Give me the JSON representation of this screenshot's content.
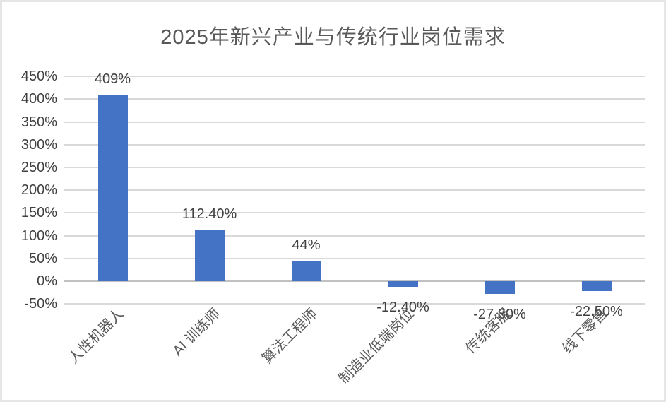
{
  "chart_data": {
    "type": "bar",
    "title": "2025年新兴产业与传统行业岗位需求",
    "categories": [
      "人性机器人",
      "AI 训练师",
      "算法工程师",
      "制造业低端岗位",
      "传统客服",
      "线下零售"
    ],
    "values": [
      409,
      112.4,
      44,
      -12.4,
      -27.8,
      -22.5
    ],
    "data_labels": [
      "409%",
      "112.40%",
      "44%",
      "-12.40%",
      "-27.80%",
      "-22.50%"
    ],
    "y_tick_labels": [
      "450%",
      "400%",
      "350%",
      "300%",
      "250%",
      "200%",
      "150%",
      "100%",
      "50%",
      "0%",
      "-50%"
    ],
    "y_tick_values": [
      450,
      400,
      350,
      300,
      250,
      200,
      150,
      100,
      50,
      0,
      -50
    ],
    "ylim": [
      -50,
      450
    ],
    "xlabel": "",
    "ylabel": "",
    "grid": true,
    "legend_position": "none",
    "colors": {
      "bar_fill": "#4472C4",
      "gridline": "#D9D9D9",
      "zero_axis_line": "#C0C0C0",
      "title_text": "#595959",
      "value_label_text": "#404040",
      "y_tick_text": "#404040",
      "category_text": "#595959",
      "frame_border": "#E5E5E5",
      "background": "#FFFFFF"
    }
  }
}
